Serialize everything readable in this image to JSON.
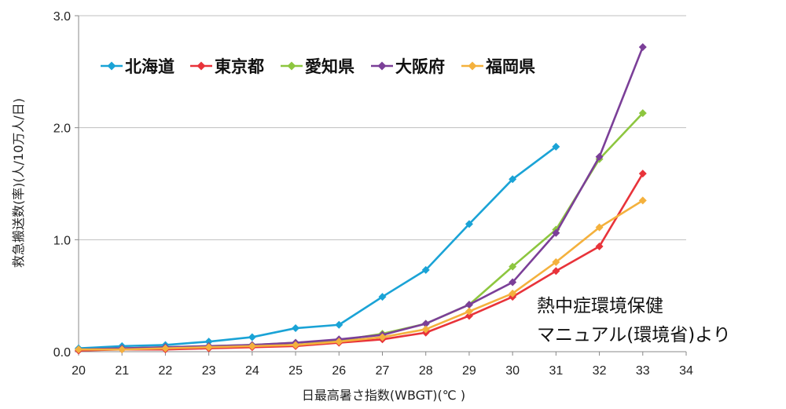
{
  "chart_data": {
    "type": "line",
    "title": "",
    "xlabel": "日最高暑さ指数(WBGT)(℃ )",
    "ylabel": "救急搬送数(率)(人/10万人/日)",
    "x": [
      20,
      21,
      22,
      23,
      24,
      25,
      26,
      27,
      28,
      29,
      30,
      31,
      32,
      33
    ],
    "x_ticks": [
      "20",
      "21",
      "22",
      "23",
      "24",
      "25",
      "26",
      "27",
      "28",
      "29",
      "30",
      "31",
      "32",
      "33",
      "34"
    ],
    "xlim": [
      20,
      34
    ],
    "y_ticks": [
      "0.0",
      "1.0",
      "2.0",
      "3.0"
    ],
    "ylim": [
      0,
      3
    ],
    "grid": "horizontal",
    "legend_position": "top-left",
    "annotation": [
      "熱中症環境保健",
      "マニュアル(環境省)より"
    ],
    "series": [
      {
        "name": "北海道",
        "color": "#1aa3d6",
        "values": [
          0.03,
          0.05,
          0.06,
          0.09,
          0.13,
          0.21,
          0.24,
          0.49,
          0.73,
          1.14,
          1.54,
          1.83,
          null,
          null
        ]
      },
      {
        "name": "東京都",
        "color": "#e8333a",
        "values": [
          0.01,
          0.02,
          0.02,
          0.03,
          0.04,
          0.05,
          0.08,
          0.11,
          0.17,
          0.32,
          0.49,
          0.72,
          0.94,
          1.59
        ]
      },
      {
        "name": "愛知県",
        "color": "#8dc63f",
        "values": [
          0.02,
          0.03,
          0.04,
          0.05,
          0.06,
          0.08,
          0.1,
          0.16,
          0.25,
          0.42,
          0.76,
          1.09,
          1.72,
          2.13
        ]
      },
      {
        "name": "大阪府",
        "color": "#7b3f98",
        "values": [
          0.02,
          0.03,
          0.04,
          0.05,
          0.06,
          0.08,
          0.11,
          0.15,
          0.25,
          0.42,
          0.62,
          1.06,
          1.74,
          2.72
        ]
      },
      {
        "name": "福岡県",
        "color": "#f4b13d",
        "values": [
          0.02,
          0.02,
          0.03,
          0.04,
          0.05,
          0.06,
          0.09,
          0.13,
          0.2,
          0.36,
          0.52,
          0.8,
          1.11,
          1.35
        ]
      }
    ]
  }
}
